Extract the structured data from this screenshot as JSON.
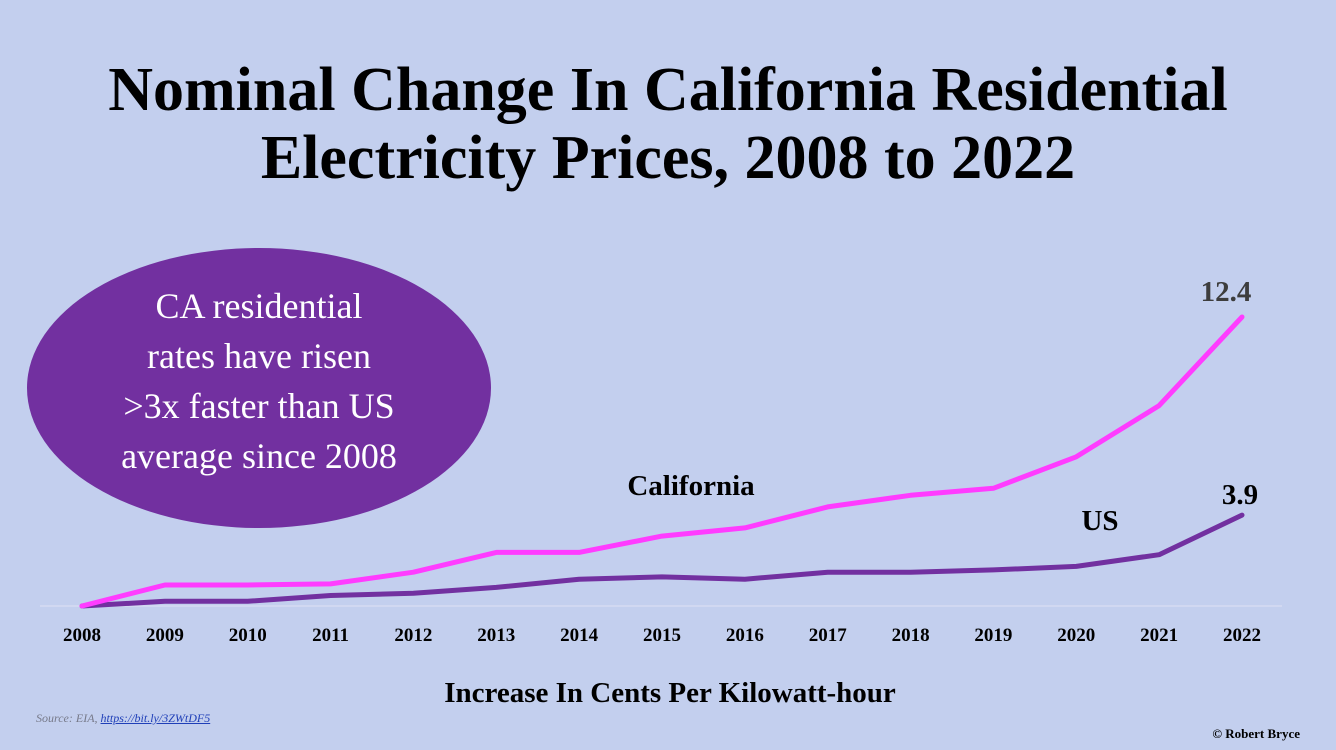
{
  "title_lines": [
    "Nominal Change In California Residential",
    "Electricity Prices, 2008 to 2022"
  ],
  "callout_lines": [
    "CA residential",
    "rates have risen",
    ">3x faster than US",
    "average since 2008"
  ],
  "source": {
    "prefix": "Source: EIA, ",
    "link_text": "https://bit.ly/3ZWtDF5"
  },
  "credit": "© Robert Bryce",
  "colors": {
    "background": "#c3cfee",
    "california": "#ff3cff",
    "us": "#7230a0",
    "callout": "#7230a0"
  },
  "chart_data": {
    "type": "line",
    "title": "Nominal Change In California Residential Electricity Prices, 2008 to 2022",
    "xlabel": "Increase In Cents Per Kilowatt-hour",
    "ylabel": "",
    "categories": [
      "2008",
      "2009",
      "2010",
      "2011",
      "2012",
      "2013",
      "2014",
      "2015",
      "2016",
      "2017",
      "2018",
      "2019",
      "2020",
      "2021",
      "2022"
    ],
    "ylim": [
      0,
      12.4
    ],
    "grid": false,
    "series": [
      {
        "name": "California",
        "color": "#ff3cff",
        "values": [
          0,
          0.9,
          0.9,
          0.95,
          1.45,
          2.3,
          2.3,
          3.0,
          3.35,
          4.25,
          4.75,
          5.05,
          6.4,
          8.6,
          12.4
        ],
        "end_label": "12.4"
      },
      {
        "name": "US",
        "color": "#7230a0",
        "values": [
          0,
          0.2,
          0.2,
          0.45,
          0.55,
          0.8,
          1.15,
          1.25,
          1.15,
          1.45,
          1.45,
          1.55,
          1.7,
          2.2,
          3.9
        ],
        "end_label": "3.9"
      }
    ]
  }
}
